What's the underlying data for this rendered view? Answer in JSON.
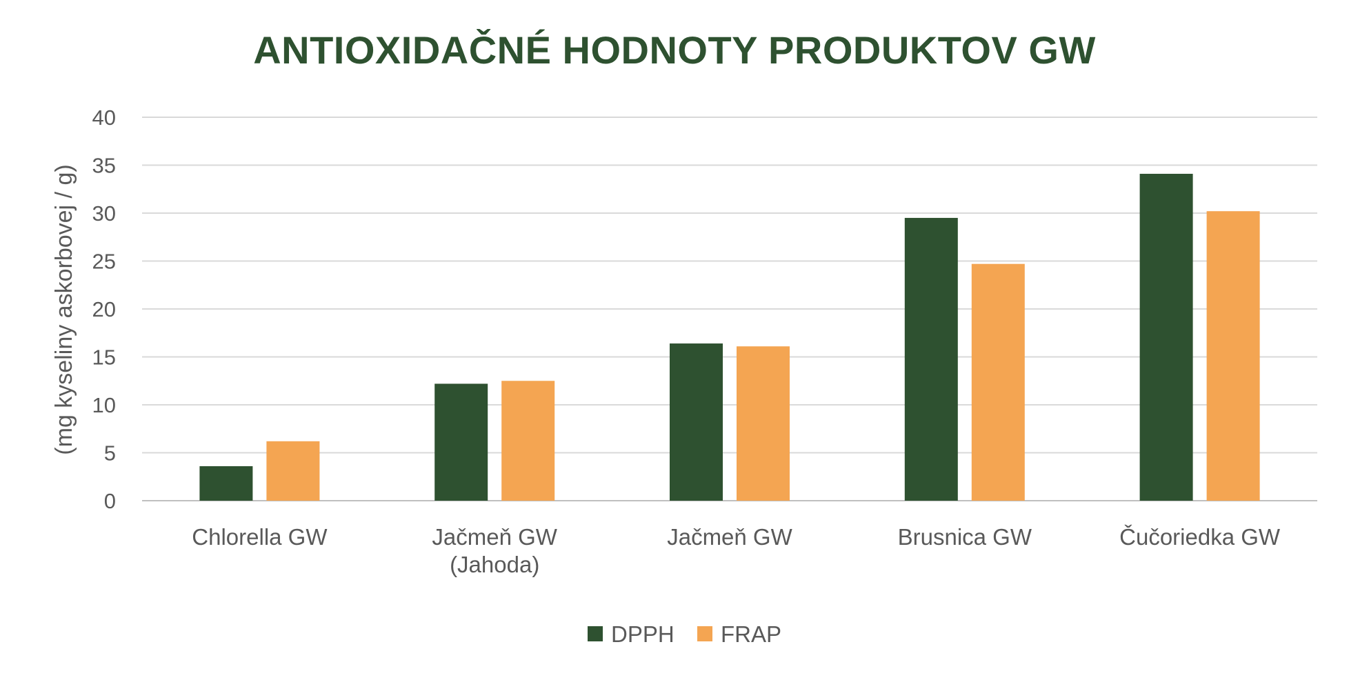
{
  "chart_data": {
    "type": "bar",
    "title": "ANTIOXIDAČNÉ HODNOTY PRODUKTOV GW",
    "ylabel": "(mg  kyseliny askorbovej / g)",
    "xlabel": "",
    "categories": [
      [
        "Chlorella GW"
      ],
      [
        "Jačmeň GW",
        "(Jahoda)"
      ],
      [
        "Jačmeň GW"
      ],
      [
        "Brusnica GW"
      ],
      [
        "Čučoriedka GW"
      ]
    ],
    "series": [
      {
        "name": "DPPH",
        "color": "#2e5130",
        "values": [
          3.6,
          12.2,
          16.4,
          29.5,
          34.1
        ]
      },
      {
        "name": "FRAP",
        "color": "#f4a552",
        "values": [
          6.2,
          12.5,
          16.1,
          24.7,
          30.2
        ]
      }
    ],
    "ylim": [
      0,
      40
    ],
    "yticks": [
      0,
      5,
      10,
      15,
      20,
      25,
      30,
      35,
      40
    ],
    "grid": true,
    "legend_position": "bottom"
  }
}
